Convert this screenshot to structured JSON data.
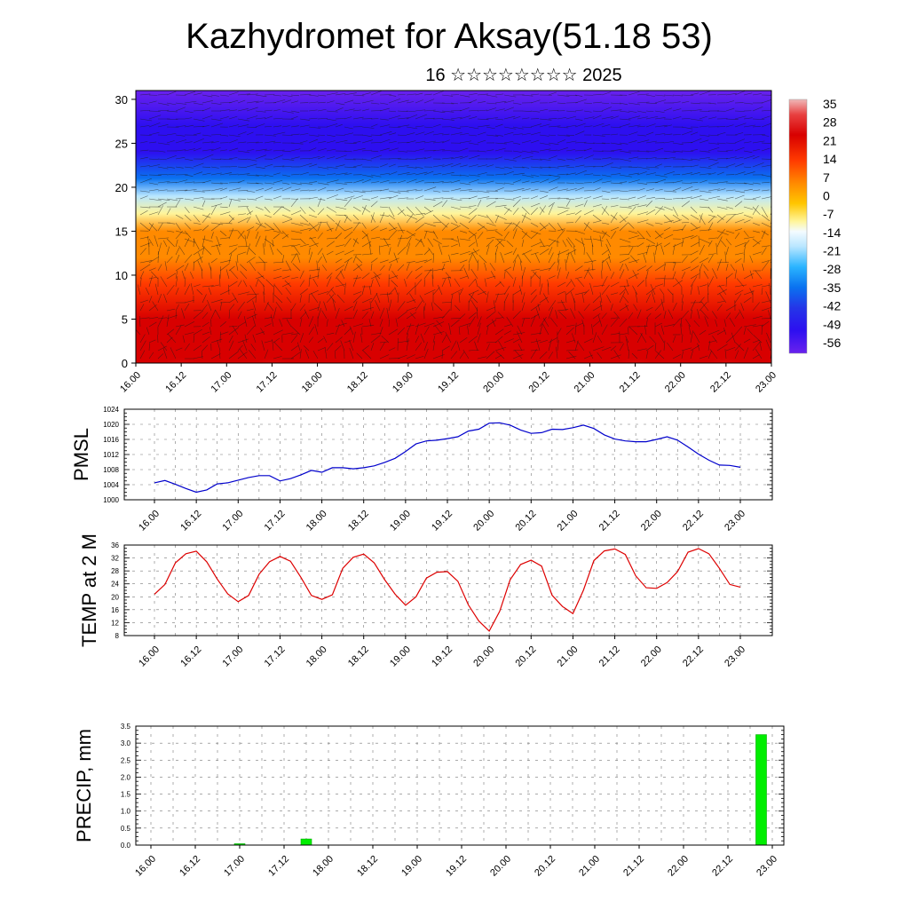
{
  "title": "Kazhydromet for Aksay(51.18 53)",
  "subtitle": "16 ☆☆☆☆☆☆☆☆ 2025",
  "time_labels": [
    "16.00",
    "16.12",
    "17.00",
    "17.12",
    "18.00",
    "18.12",
    "19.00",
    "19.12",
    "20.00",
    "20.12",
    "21.00",
    "21.12",
    "22.00",
    "22.12",
    "23.00"
  ],
  "chart_data": [
    {
      "type": "heatmap",
      "title": "",
      "xlabel": "",
      "ylabel": "",
      "x": [
        "16.00",
        "16.12",
        "17.00",
        "17.12",
        "18.00",
        "18.12",
        "19.00",
        "19.12",
        "20.00",
        "20.12",
        "21.00",
        "21.12",
        "22.00",
        "22.12",
        "23.00"
      ],
      "y_ticks": [
        0,
        5,
        10,
        15,
        20,
        25,
        30
      ],
      "ylim": [
        0,
        31
      ],
      "colorbar_labels": [
        "35",
        "28",
        "21",
        "14",
        "7",
        "0",
        "-7",
        "-14",
        "-21",
        "-28",
        "-35",
        "-42",
        "-49",
        "-56"
      ],
      "colorbar_range": [
        -60,
        38
      ],
      "temperature_by_level": [
        {
          "level": 0,
          "value": 26
        },
        {
          "level": 5,
          "value": 24
        },
        {
          "level": 9,
          "value": 19
        },
        {
          "level": 12,
          "value": 10
        },
        {
          "level": 15,
          "value": 3
        },
        {
          "level": 17,
          "value": -6
        },
        {
          "level": 19,
          "value": -22
        },
        {
          "level": 21,
          "value": -35
        },
        {
          "level": 24,
          "value": -48
        },
        {
          "level": 27,
          "value": -55
        },
        {
          "level": 31,
          "value": -56
        }
      ],
      "wind_vectors": "overlay"
    },
    {
      "type": "line",
      "ylabel": "PMSL",
      "ylim": [
        1000,
        1024
      ],
      "y_ticks": [
        1000,
        1004,
        1008,
        1012,
        1016,
        1020,
        1024
      ],
      "color": "#0000cc",
      "x": [
        "16.00",
        "16.03",
        "16.06",
        "16.09",
        "16.12",
        "16.15",
        "16.18",
        "16.21",
        "17.00",
        "17.03",
        "17.06",
        "17.09",
        "17.12",
        "17.15",
        "17.18",
        "17.21",
        "18.00",
        "18.03",
        "18.06",
        "18.09",
        "18.12",
        "18.15",
        "18.18",
        "18.21",
        "19.00",
        "19.03",
        "19.06",
        "19.09",
        "19.12",
        "19.15",
        "19.18",
        "19.21",
        "20.00",
        "20.03",
        "20.06",
        "20.09",
        "20.12",
        "20.15",
        "20.18",
        "20.21",
        "21.00",
        "21.03",
        "21.06",
        "21.09",
        "21.12",
        "21.15",
        "21.18",
        "21.21",
        "22.00",
        "22.03",
        "22.06",
        "22.09",
        "22.12",
        "22.15",
        "22.18",
        "22.21",
        "23.00"
      ],
      "values": [
        1004.5,
        1005.1,
        1004.1,
        1003.0,
        1002.0,
        1002.6,
        1004.2,
        1004.5,
        1005.2,
        1005.9,
        1006.4,
        1006.4,
        1005.0,
        1005.6,
        1006.6,
        1007.8,
        1007.3,
        1008.5,
        1008.5,
        1008.2,
        1008.5,
        1009.0,
        1009.9,
        1011.0,
        1012.8,
        1014.8,
        1015.6,
        1015.8,
        1016.2,
        1016.7,
        1018.2,
        1018.7,
        1020.3,
        1020.4,
        1019.8,
        1018.5,
        1017.6,
        1017.8,
        1018.7,
        1018.6,
        1019.1,
        1019.8,
        1018.9,
        1017.2,
        1016.1,
        1015.6,
        1015.4,
        1015.4,
        1016.0,
        1016.7,
        1015.8,
        1014.0,
        1012.1,
        1010.5,
        1009.2,
        1009.1,
        1008.6
      ]
    },
    {
      "type": "line",
      "ylabel": "TEMP at 2 M",
      "ylim": [
        8,
        36
      ],
      "y_ticks": [
        8,
        12,
        16,
        20,
        24,
        28,
        32,
        36
      ],
      "color": "#dd0000",
      "x": [
        "16.00",
        "16.03",
        "16.06",
        "16.09",
        "16.12",
        "16.15",
        "16.18",
        "16.21",
        "17.00",
        "17.03",
        "17.06",
        "17.09",
        "17.12",
        "17.15",
        "17.18",
        "17.21",
        "18.00",
        "18.03",
        "18.06",
        "18.09",
        "18.12",
        "18.15",
        "18.18",
        "18.21",
        "19.00",
        "19.03",
        "19.06",
        "19.09",
        "19.12",
        "19.15",
        "19.18",
        "19.21",
        "20.00",
        "20.03",
        "20.06",
        "20.09",
        "20.12",
        "20.15",
        "20.18",
        "20.21",
        "21.00",
        "21.03",
        "21.06",
        "21.09",
        "21.12",
        "21.15",
        "21.18",
        "21.21",
        "22.00",
        "22.03",
        "22.06",
        "22.09",
        "22.12",
        "22.15",
        "22.18",
        "22.21",
        "23.00"
      ],
      "values": [
        20.8,
        23.8,
        30.5,
        33.3,
        34.1,
        30.8,
        25.5,
        20.9,
        18.5,
        20.4,
        27.0,
        30.8,
        32.5,
        31.0,
        26.0,
        20.4,
        19.2,
        20.6,
        28.8,
        32.2,
        33.2,
        30.5,
        25.3,
        20.8,
        17.4,
        20.0,
        25.8,
        27.6,
        27.8,
        24.8,
        17.5,
        12.5,
        9.4,
        15.5,
        25.3,
        30.0,
        31.3,
        29.5,
        20.5,
        17.0,
        14.8,
        22.0,
        31.2,
        34.2,
        34.8,
        33.1,
        26.5,
        22.8,
        22.6,
        24.4,
        27.8,
        33.8,
        34.9,
        33.3,
        28.8,
        23.8,
        23.0
      ]
    },
    {
      "type": "bar",
      "ylabel": "PRECIP, mm",
      "ylim": [
        0,
        3.5
      ],
      "y_ticks": [
        "0.0",
        "0.5",
        "1.0",
        "1.5",
        "2.0",
        "2.5",
        "3.0",
        "3.5"
      ],
      "color": "#00ee00",
      "x": [
        "17.00",
        "17.18",
        "22.21"
      ],
      "values": [
        0.04,
        0.18,
        3.25
      ]
    }
  ]
}
